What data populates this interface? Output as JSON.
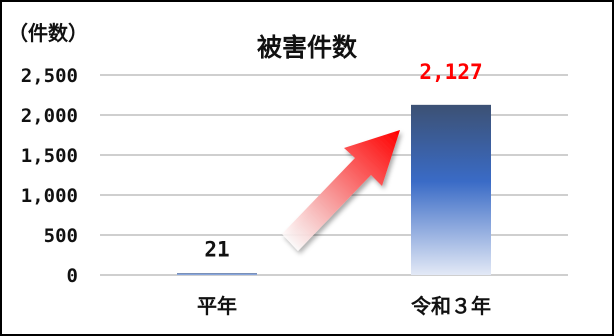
{
  "chart_data": {
    "type": "bar",
    "title": "被害件数",
    "unit_label": "（件数）",
    "categories": [
      "平年",
      "令和３年"
    ],
    "values": [
      21,
      2127
    ],
    "data_labels": [
      "21",
      "2,127"
    ],
    "ylim": [
      0,
      2500
    ],
    "y_ticks": [
      0,
      500,
      1000,
      1500,
      2000,
      2500
    ],
    "y_tick_labels": [
      "0",
      "500",
      "1,000",
      "1,500",
      "2,000",
      "2,500"
    ],
    "grid": true,
    "legend": "none",
    "colors": {
      "bar_top": "#3c5174",
      "bar_mid": "#3a6bc6",
      "bar_bottom": "#e3e9f6",
      "highlight_label": "#ff0000",
      "normal_label": "#111111",
      "gridline": "#bfbfbf",
      "arrow_tip": "#ff0000",
      "arrow_tail": "#ffffff"
    },
    "annotations": [
      {
        "type": "arrow",
        "from_category": "平年",
        "to_category": "令和３年",
        "meaning": "increase"
      }
    ]
  }
}
